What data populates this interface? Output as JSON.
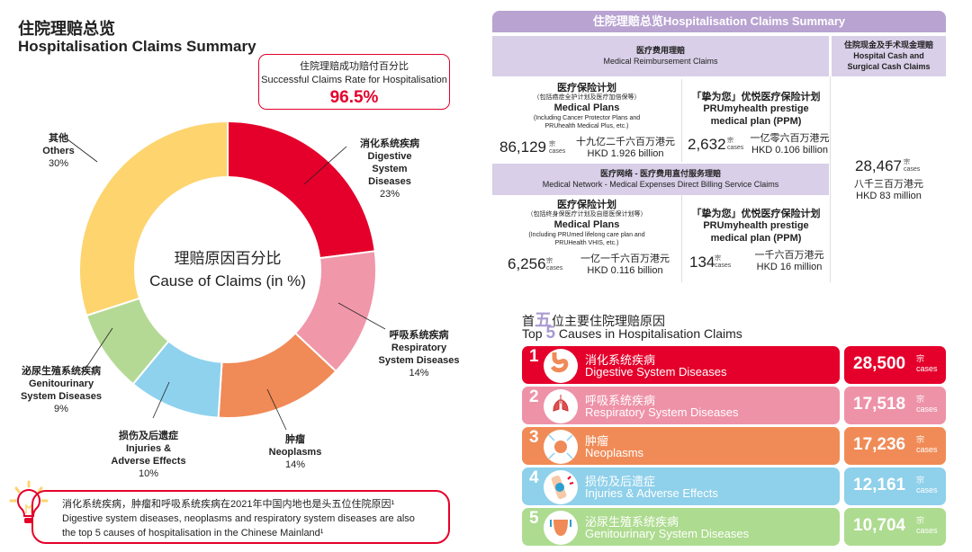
{
  "header": {
    "title_zh": "住院理赔总览",
    "title_en": "Hospitalisation Claims Summary"
  },
  "success_rate": {
    "label_zh": "住院理赔成功赔付百分比",
    "label_en": "Successful Claims Rate for Hospitalisation",
    "value": "96.5%"
  },
  "chart_data": {
    "type": "pie",
    "title_zh": "理赔原因百分比",
    "title_en": "Cause of Claims (in %)",
    "slices": [
      {
        "zh": "消化系统疾病",
        "en": "Digestive System Diseases",
        "value": 23,
        "label": "23%",
        "color": "#e4002b"
      },
      {
        "zh": "呼吸系统疾病",
        "en": "Respiratory System Diseases",
        "value": 14,
        "label": "14%",
        "color": "#f097aa"
      },
      {
        "zh": "肿瘤",
        "en": "Neoplasms",
        "value": 14,
        "label": "14%",
        "color": "#f08a57"
      },
      {
        "zh": "损伤及后遗症",
        "en": "Injuries & Adverse Effects",
        "value": 10,
        "label": "10%",
        "color": "#8ed2ee"
      },
      {
        "zh": "泌尿生殖系统疾病",
        "en": "Genitourinary System Diseases",
        "value": 9,
        "label": "9%",
        "color": "#b4d995"
      },
      {
        "zh": "其他",
        "en": "Others",
        "value": 30,
        "label": "30%",
        "color": "#fdd46e"
      }
    ]
  },
  "note": {
    "zh": "消化系统疾病，肿瘤和呼吸系统疾病在2021年中国内地也是头五位住院原因¹",
    "en1": "Digestive system diseases, neoplasms and respiratory system diseases are also",
    "en2": "the top 5 causes of hospitalisation in the Chinese Mainland¹"
  },
  "summary": {
    "title": "住院理赔总览Hospitalisation Claims Summary",
    "reimb_zh": "医疗费用理赔",
    "reimb_en": "Medical Reimbursement Claims",
    "cash_zh": "住院现金及手术现金理赔",
    "cash_en1": "Hospital Cash and",
    "cash_en2": "Surgical Cash Claims",
    "network_zh": "医疗网络 - 医疗费用直付服务理赔",
    "network_en": "Medical Network - Medical Expenses Direct Billing Service Claims",
    "cases_zh": "宗",
    "cases_en": "cases",
    "r1": {
      "zh": "医疗保险计划",
      "zh_sub": "（包括癌症全护计划及医疗加倍保等）",
      "en": "Medical Plans",
      "en_sub1": "(Including Cancer Protector Plans and",
      "en_sub2": "PRUhealth Medical Plus, etc.)",
      "count": "86,129",
      "amt_zh": "十九亿二千六百万港元",
      "amt_en": "HKD 1.926 billion"
    },
    "r2": {
      "zh": "「挚为您」优悦医疗保险计划",
      "en1": "PRUmyhealth prestige",
      "en2": "medical plan (PPM)",
      "count": "2,632",
      "amt_zh": "一亿零六百万港元",
      "amt_en": "HKD 0.106 billion"
    },
    "n1": {
      "zh": "医疗保险计划",
      "zh_sub": "（包括终身保医疗计划及自愿医保计划等）",
      "en": "Medical Plans",
      "en_sub1": "(Including PRUmed lifelong care plan and",
      "en_sub2": "PRUHealth VHIS, etc.)",
      "count": "6,256",
      "amt_zh": "一亿一千六百万港元",
      "amt_en": "HKD 0.116 billion"
    },
    "n2": {
      "zh": "「挚为您」优悦医疗保险计划",
      "en1": "PRUmyhealth prestige",
      "en2": "medical plan (PPM)",
      "count": "134",
      "amt_zh": "一千六百万港元",
      "amt_en": "HKD 16 million"
    },
    "cash": {
      "count": "28,467",
      "amt_zh": "八千三百万港元",
      "amt_en": "HKD 83 million"
    }
  },
  "top5": {
    "title_zh_a": "首",
    "title_zh_b": "五",
    "title_zh_c": "位主要住院理赔原因",
    "title_en_a": "Top ",
    "title_en_b": "5",
    "title_en_c": " Causes in Hospitalisation Claims",
    "cases_zh": "宗",
    "cases_en": "cases",
    "items": [
      {
        "rank": "1",
        "zh": "消化系统疾病",
        "en": "Digestive System Diseases",
        "count": "28,500",
        "color": "#e4002b",
        "icon": "stomach-icon"
      },
      {
        "rank": "2",
        "zh": "呼吸系统疾病",
        "en": "Respiratory System Diseases",
        "count": "17,518",
        "color": "#ee92a8",
        "icon": "lungs-icon"
      },
      {
        "rank": "3",
        "zh": "肿瘤",
        "en": "Neoplasms",
        "count": "17,236",
        "color": "#f08b57",
        "icon": "tumor-icon"
      },
      {
        "rank": "4",
        "zh": "损伤及后遗症",
        "en": "Injuries & Adverse Effects",
        "count": "12,161",
        "color": "#8fd0ea",
        "icon": "injured-knee-icon"
      },
      {
        "rank": "5",
        "zh": "泌尿生殖系统疾病",
        "en": "Genitourinary System Diseases",
        "count": "10,704",
        "color": "#addb8f",
        "icon": "bladder-icon"
      }
    ]
  }
}
